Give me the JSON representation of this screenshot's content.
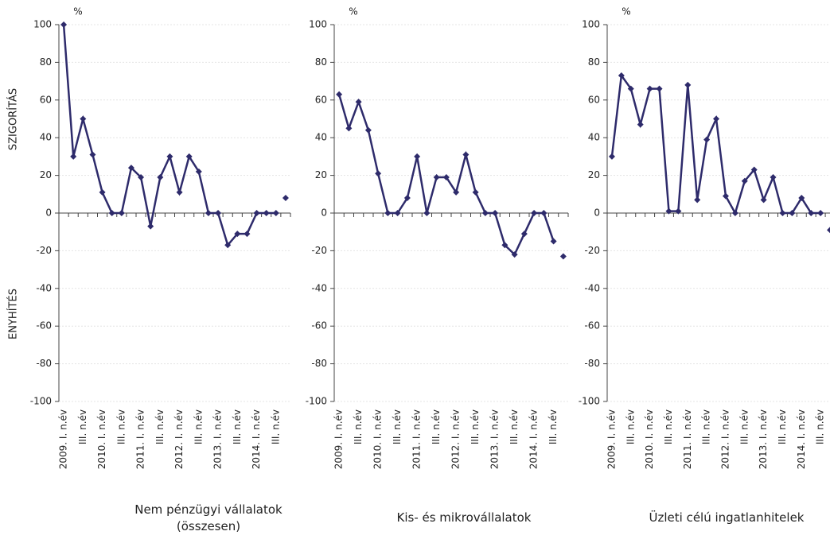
{
  "chart_data": [
    {
      "type": "line",
      "title": "Nem pénzügyi vállalatok (összesen)",
      "y_unit": "%",
      "annotations": [
        "SZIGORÍTÁS",
        "ENYHÍTÉS"
      ],
      "categories": [
        "2009. I. n.év",
        null,
        "III. n.év",
        null,
        "2010. I. n.év",
        null,
        "III. n.év",
        null,
        "2011. I. n.év",
        null,
        "III. n.év",
        null,
        "2012. I. n.év",
        null,
        "III. n.év",
        null,
        "2013. I. n.év",
        null,
        "III. n.év",
        null,
        "2014. I. n.év",
        null,
        "III. n.év",
        null
      ],
      "series": [
        {
          "color": "#2e2b6b",
          "values": [
            100,
            30,
            50,
            31,
            11,
            0,
            0,
            24,
            19,
            -7,
            19,
            30,
            11,
            30,
            22,
            0,
            0,
            -17,
            -11,
            -11,
            0,
            0,
            0,
            null
          ]
        },
        {
          "color": "#2e2b6b",
          "markers_only": true,
          "values": [
            null,
            null,
            null,
            null,
            null,
            null,
            null,
            null,
            null,
            null,
            null,
            null,
            null,
            null,
            null,
            null,
            null,
            null,
            null,
            null,
            null,
            null,
            null,
            8
          ]
        }
      ],
      "ylim": [
        -100,
        100
      ],
      "yticks": [
        -100,
        -80,
        -60,
        -40,
        -20,
        0,
        20,
        40,
        60,
        80,
        100
      ],
      "grid": true
    },
    {
      "type": "line",
      "title": "Kis- és mikrovállalatok",
      "y_unit": "%",
      "categories": [
        "2009. I. n.év",
        null,
        "III. n.év",
        null,
        "2010. I. n.év",
        null,
        "III. n.év",
        null,
        "2011. I. n.év",
        null,
        "III. n.év",
        null,
        "2012. I. n.év",
        null,
        "III. n.év",
        null,
        "2013. I. n.év",
        null,
        "III. n.év",
        null,
        "2014. I. n.év",
        null,
        "III. n.év",
        null
      ],
      "series": [
        {
          "color": "#2e2b6b",
          "values": [
            63,
            45,
            59,
            44,
            21,
            0,
            0,
            8,
            30,
            0,
            19,
            19,
            11,
            31,
            11,
            0,
            0,
            -17,
            -22,
            -11,
            0,
            0,
            -15,
            null
          ]
        },
        {
          "color": "#2e2b6b",
          "markers_only": true,
          "values": [
            null,
            null,
            null,
            null,
            null,
            null,
            null,
            null,
            null,
            null,
            null,
            null,
            null,
            null,
            null,
            null,
            null,
            null,
            null,
            null,
            null,
            null,
            null,
            -23
          ]
        }
      ],
      "ylim": [
        -100,
        100
      ],
      "yticks": [
        -100,
        -80,
        -60,
        -40,
        -20,
        0,
        20,
        40,
        60,
        80,
        100
      ],
      "grid": true
    },
    {
      "type": "line",
      "title": "Üzleti célú ingatlanhitelek",
      "y_unit": "%",
      "categories": [
        "2009. I. n.év",
        null,
        "III. n.év",
        null,
        "2010. I. n.év",
        null,
        "III. n.év",
        null,
        "2011. I. n.év",
        null,
        "III. n.év",
        null,
        "2012. I. n.év",
        null,
        "III. n.év",
        null,
        "2013. I. n.év",
        null,
        "III. n.év",
        null,
        "2014. I. n.év",
        null,
        "III. n.év",
        null
      ],
      "series": [
        {
          "color": "#2e2b6b",
          "values": [
            30,
            73,
            66,
            47,
            66,
            66,
            1,
            1,
            68,
            7,
            39,
            50,
            9,
            0,
            17,
            23,
            7,
            19,
            0,
            0,
            8,
            0,
            0,
            null
          ]
        },
        {
          "color": "#2e2b6b",
          "markers_only": true,
          "values": [
            null,
            null,
            null,
            null,
            null,
            null,
            null,
            null,
            null,
            null,
            null,
            null,
            null,
            null,
            null,
            null,
            null,
            null,
            null,
            null,
            null,
            null,
            null,
            -9
          ]
        }
      ],
      "ylim": [
        -100,
        100
      ],
      "yticks": [
        -100,
        -80,
        -60,
        -40,
        -20,
        0,
        20,
        40,
        60,
        80,
        100
      ],
      "grid": true
    }
  ]
}
